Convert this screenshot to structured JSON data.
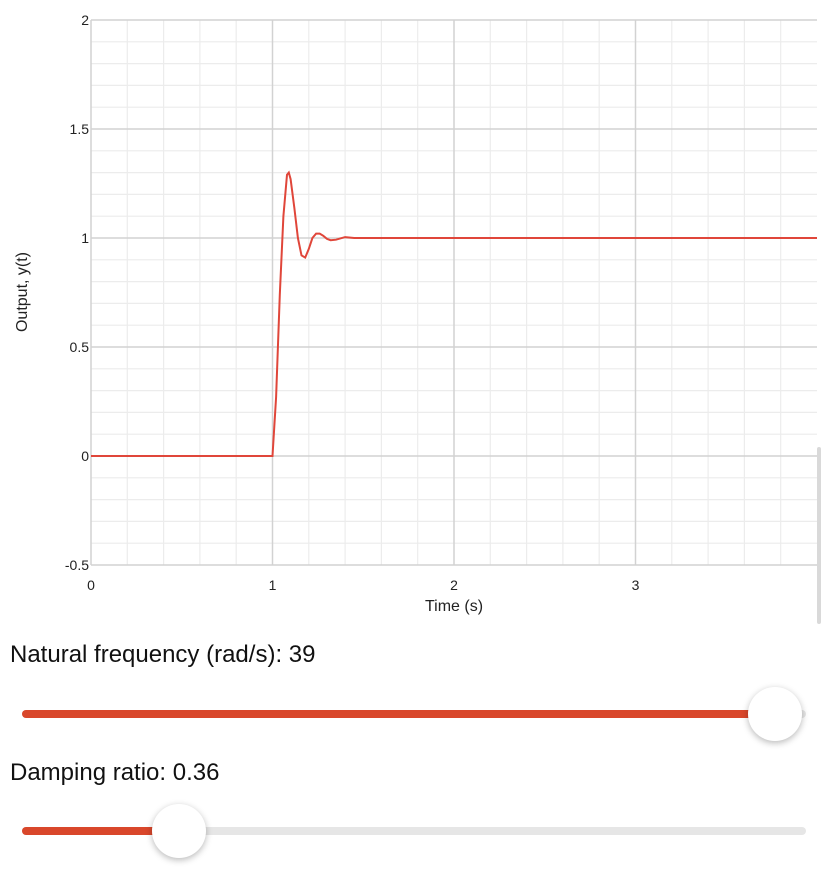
{
  "chart_data": {
    "type": "line",
    "title": "",
    "xlabel": "Time (s)",
    "ylabel": "Output, y(t)",
    "xlim": [
      0,
      4
    ],
    "ylim": [
      -0.5,
      2
    ],
    "x_ticks": [
      0,
      1,
      2,
      3
    ],
    "x_tick_labels": [
      "0",
      "1",
      "2",
      "3"
    ],
    "y_ticks": [
      -0.5,
      0,
      0.5,
      1,
      1.5,
      2
    ],
    "y_tick_labels": [
      "-0.5",
      "0",
      "0.5",
      "1",
      "1.5",
      "2"
    ],
    "grid": true,
    "legend": "none",
    "series": [
      {
        "color": "#e0463a",
        "step_time": 1,
        "natural_frequency": 39,
        "damping_ratio": 0.36,
        "x": [
          0,
          1,
          1.02,
          1.04,
          1.06,
          1.08,
          1.09,
          1.1,
          1.12,
          1.14,
          1.16,
          1.18,
          1.2,
          1.22,
          1.24,
          1.26,
          1.28,
          1.3,
          1.32,
          1.35,
          1.4,
          1.45,
          1.5,
          2,
          3,
          4
        ],
        "values": [
          0,
          0,
          0.27,
          0.74,
          1.1,
          1.29,
          1.3,
          1.27,
          1.14,
          1.0,
          0.92,
          0.91,
          0.95,
          1.0,
          1.02,
          1.02,
          1.01,
          0.996,
          0.99,
          0.992,
          1.004,
          1.0,
          1.0,
          1.0,
          1.0,
          1.0
        ]
      }
    ]
  },
  "controls": {
    "frequency": {
      "label": "Natural frequency (rad/s): 39",
      "value": 39,
      "fraction": 0.96
    },
    "damping": {
      "label": "Damping ratio: 0.36",
      "value": 0.36,
      "fraction": 0.2
    }
  },
  "colors": {
    "accent": "#d9472b",
    "track": "#e6e6e6",
    "grid": "#ececec",
    "grid_major": "#d2d2d2"
  }
}
